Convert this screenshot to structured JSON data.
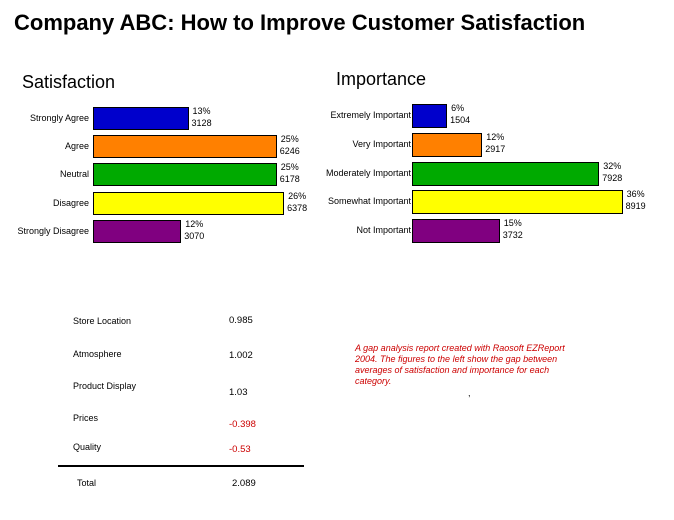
{
  "page": {
    "title": "Company ABC: How to Improve Customer Satisfaction"
  },
  "chart_data": [
    {
      "type": "bar",
      "orientation": "horizontal",
      "title": "Satisfaction",
      "categories": [
        "Strongly Agree",
        "Agree",
        "Neutral",
        "Disagree",
        "Strongly Disagree"
      ],
      "values": [
        13,
        25,
        25,
        26,
        12
      ],
      "percent_labels": [
        "13%",
        "25%",
        "25%",
        "26%",
        "12%"
      ],
      "counts": [
        "3128",
        "6246",
        "6178",
        "6378",
        "3070"
      ],
      "colors": [
        "#0000cc",
        "#ff8000",
        "#00aa00",
        "#ffff00",
        "#800080"
      ],
      "grid": false
    },
    {
      "type": "bar",
      "orientation": "horizontal",
      "title": "Importance",
      "categories": [
        "Extremely Important",
        "Very Important",
        "Moderately Important",
        "Somewhat Important",
        "Not Important"
      ],
      "values": [
        6,
        12,
        32,
        36,
        15
      ],
      "percent_labels": [
        "6%",
        "12%",
        "32%",
        "36%",
        "15%"
      ],
      "counts": [
        "1504",
        "2917",
        "7928",
        "8919",
        "3732"
      ],
      "colors": [
        "#0000cc",
        "#ff8000",
        "#00aa00",
        "#ffff00",
        "#800080"
      ],
      "grid": false
    },
    {
      "type": "table",
      "title": "",
      "rows": [
        {
          "label": "Store Location",
          "value": "0.985"
        },
        {
          "label": "Atmosphere",
          "value": "1.002"
        },
        {
          "label": "Product Display",
          "value": "1.03"
        },
        {
          "label": "Prices",
          "value": "-0.398"
        },
        {
          "label": "Quality",
          "value": "-0.53"
        }
      ],
      "total": {
        "label": "Total",
        "value": "2.089"
      }
    }
  ],
  "note": {
    "text": "A gap analysis report created with Raosoft EZReport 2004. The figures to the left show the gap between averages of satisfaction and importance for each category.",
    "mark": ","
  },
  "colors": {
    "negative": "#cc0000",
    "note": "#cc0000"
  }
}
